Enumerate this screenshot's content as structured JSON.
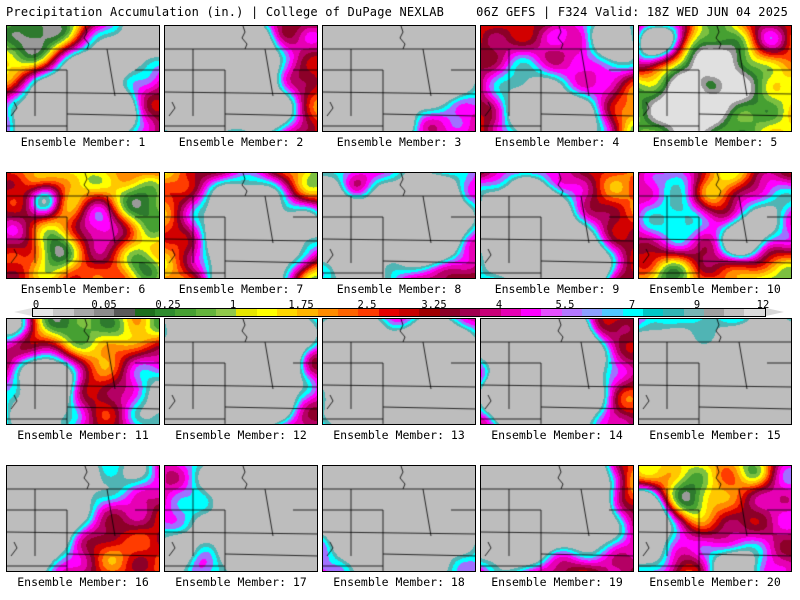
{
  "header": {
    "left": "Precipitation Accumulation (in.) | College of DuPage NEXLAB",
    "right": "06Z GEFS | F324 Valid: 18Z WED JUN 04 2025"
  },
  "colorbar": {
    "labels": [
      "0",
      "0.05",
      "0.25",
      "1",
      "1.75",
      "2.5",
      "3.25",
      "4",
      "5.5",
      "7",
      "9",
      "12"
    ],
    "colors": [
      "#e6e6e6",
      "#c8c8c8",
      "#a8a8a8",
      "#8c8c8c",
      "#5a5a5a",
      "#1e6e1e",
      "#2e8b2e",
      "#46a032",
      "#64b43c",
      "#90c84a",
      "#e6e600",
      "#ffff00",
      "#ffd700",
      "#ffb400",
      "#ff8c00",
      "#ff6400",
      "#ff3c00",
      "#e60000",
      "#c80000",
      "#a00000",
      "#8c0028",
      "#a00050",
      "#c80078",
      "#e600b4",
      "#ff00ff",
      "#e650ff",
      "#b478ff",
      "#8ca0ff",
      "#50c8ff",
      "#00ffff",
      "#00c8c8",
      "#32b4b4",
      "#78b4b4",
      "#a0a0a0",
      "#c0c0c0",
      "#dcdcdc"
    ]
  },
  "panels": [
    {
      "label": "Ensemble Member: 1",
      "wet": 0.6,
      "seed": 11
    },
    {
      "label": "Ensemble Member: 2",
      "wet": 0.45,
      "seed": 23
    },
    {
      "label": "Ensemble Member: 3",
      "wet": 0.75,
      "seed": 37
    },
    {
      "label": "Ensemble Member: 4",
      "wet": 0.55,
      "seed": 41
    },
    {
      "label": "Ensemble Member: 5",
      "wet": 0.4,
      "seed": 53
    },
    {
      "label": "Ensemble Member: 6",
      "wet": 0.55,
      "seed": 67
    },
    {
      "label": "Ensemble Member: 7",
      "wet": 0.35,
      "seed": 71
    },
    {
      "label": "Ensemble Member: 8",
      "wet": 0.7,
      "seed": 83
    },
    {
      "label": "Ensemble Member: 9",
      "wet": 0.55,
      "seed": 97
    },
    {
      "label": "Ensemble Member: 10",
      "wet": 0.45,
      "seed": 101
    },
    {
      "label": "Ensemble Member: 11",
      "wet": 0.4,
      "seed": 113
    },
    {
      "label": "Ensemble Member: 12",
      "wet": 0.65,
      "seed": 127
    },
    {
      "label": "Ensemble Member: 13",
      "wet": 0.45,
      "seed": 131
    },
    {
      "label": "Ensemble Member: 14",
      "wet": 0.6,
      "seed": 149
    },
    {
      "label": "Ensemble Member: 15",
      "wet": 0.7,
      "seed": 151
    },
    {
      "label": "Ensemble Member: 16",
      "wet": 0.55,
      "seed": 163
    },
    {
      "label": "Ensemble Member: 17",
      "wet": 0.75,
      "seed": 173
    },
    {
      "label": "Ensemble Member: 18",
      "wet": 0.75,
      "seed": 181
    },
    {
      "label": "Ensemble Member: 19",
      "wet": 0.65,
      "seed": 191
    },
    {
      "label": "Ensemble Member: 20",
      "wet": 0.45,
      "seed": 199
    }
  ]
}
